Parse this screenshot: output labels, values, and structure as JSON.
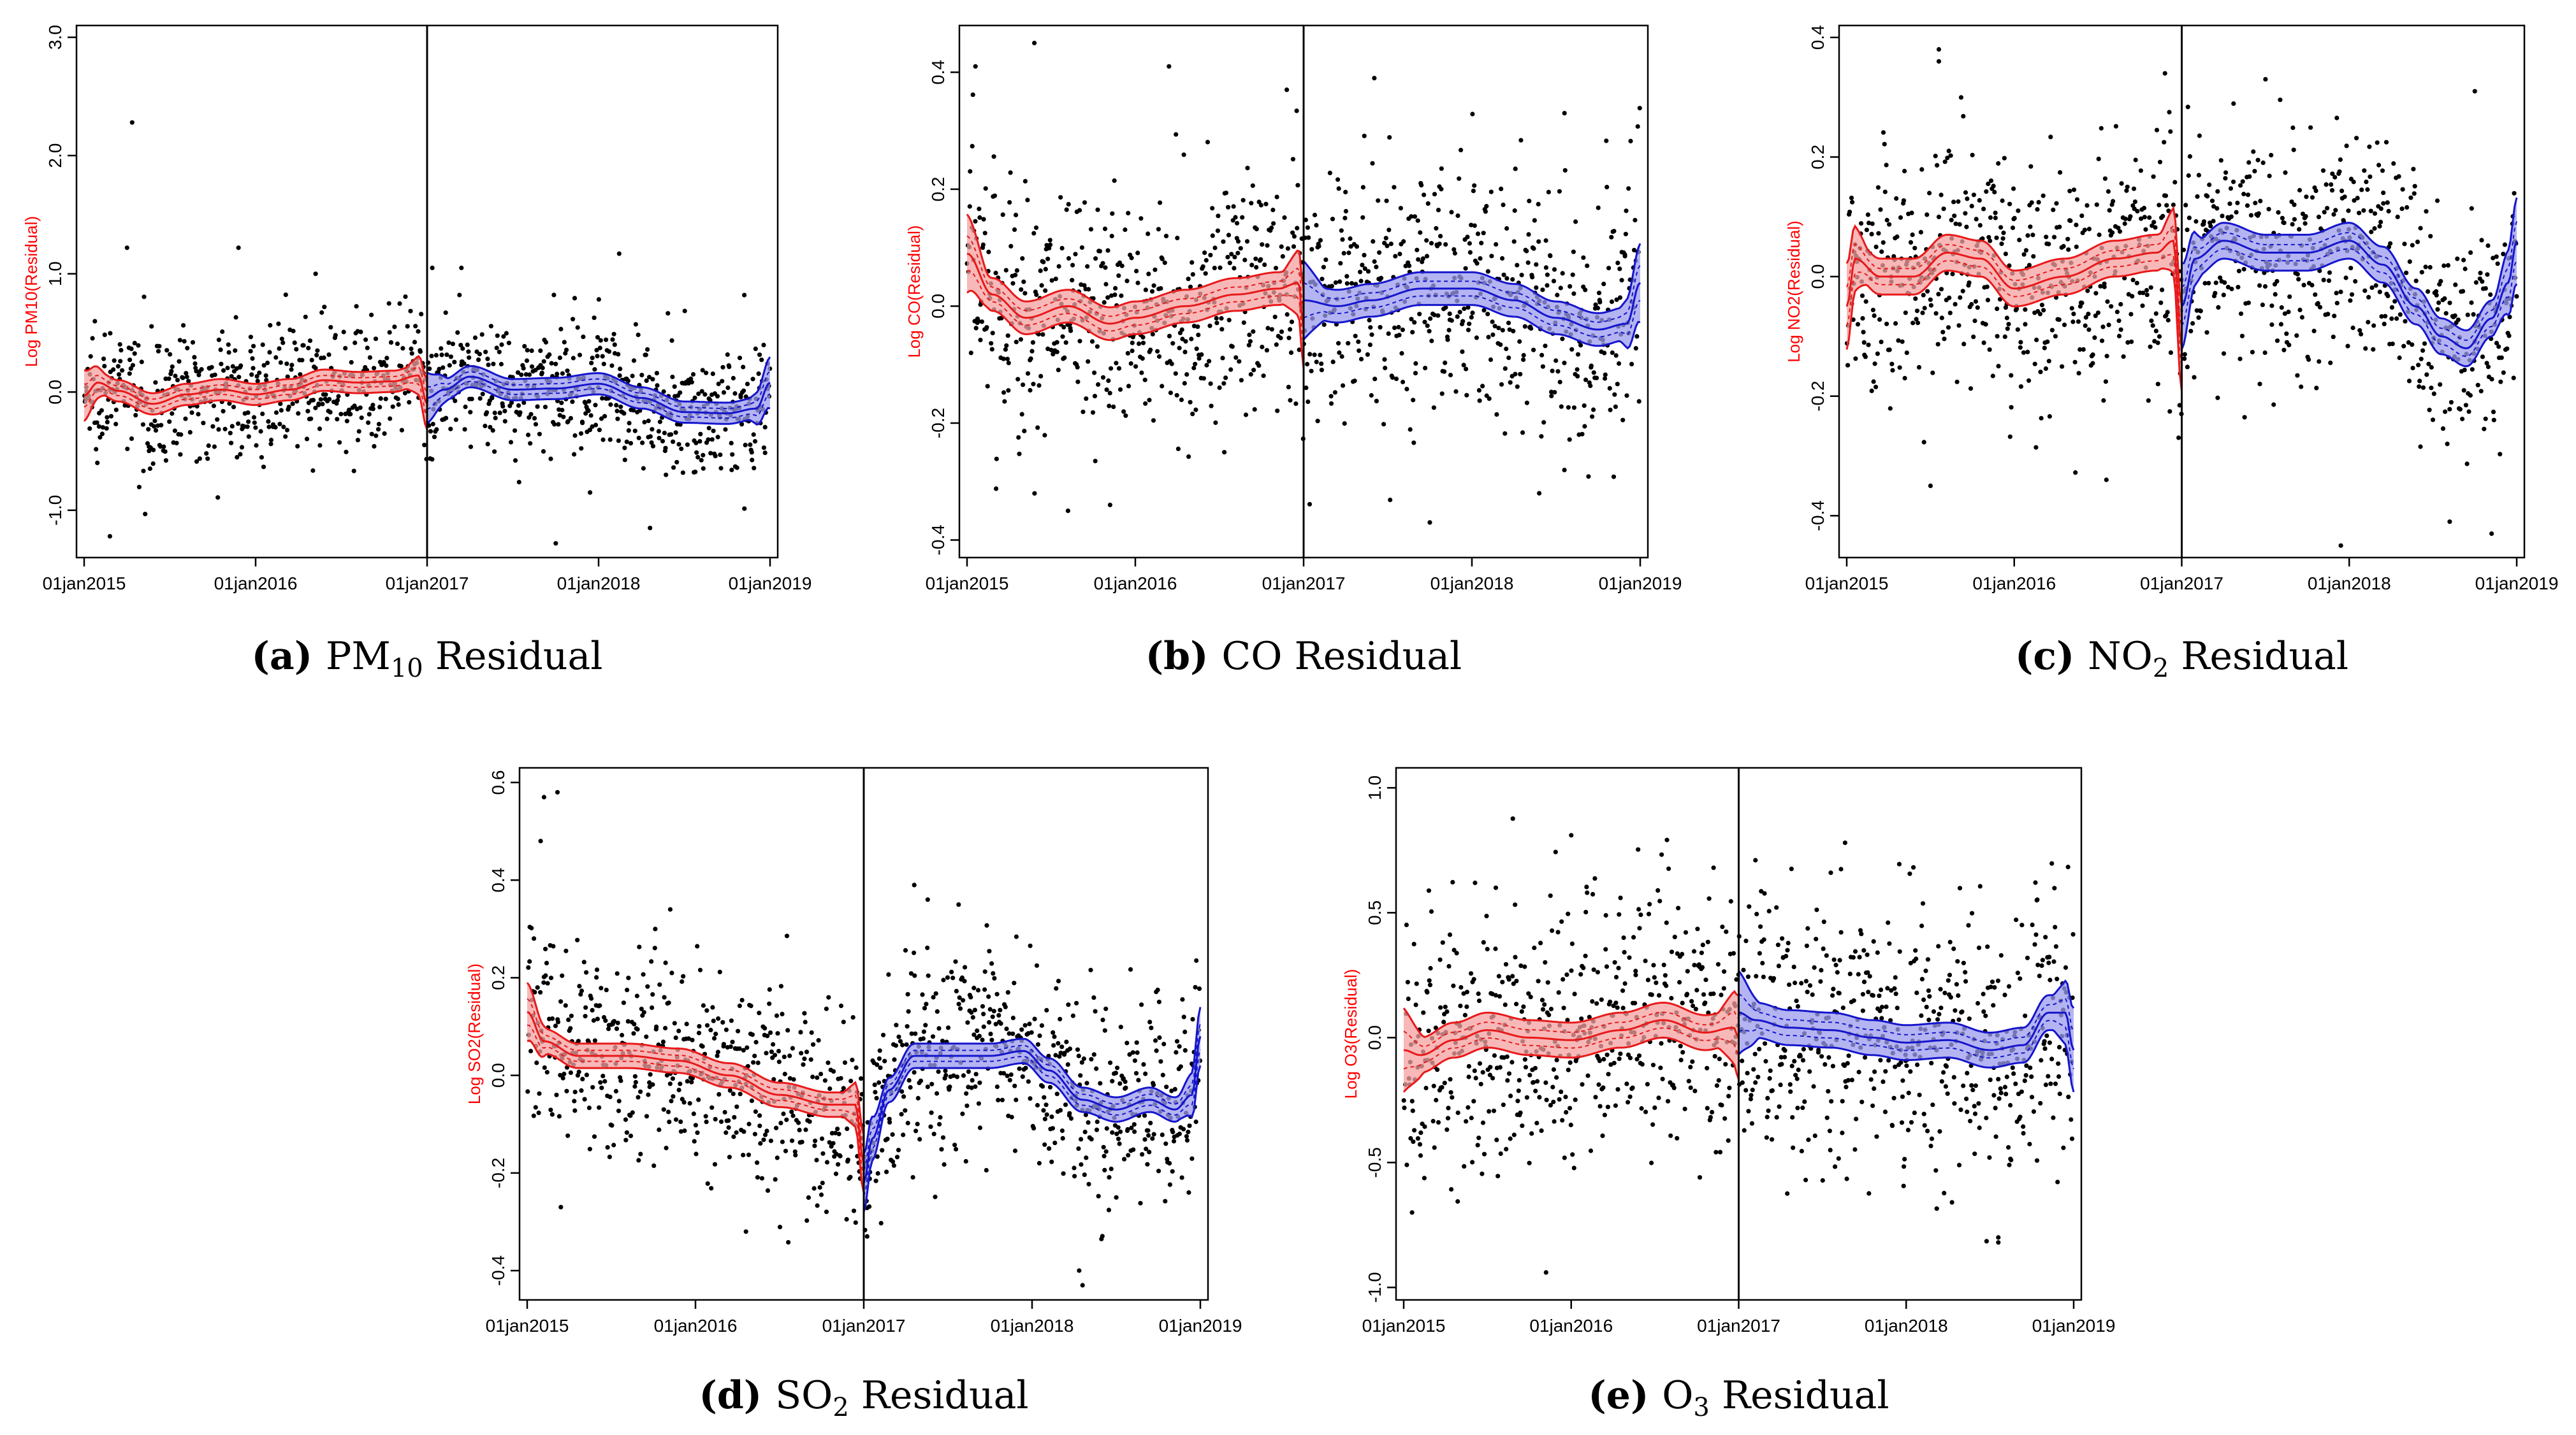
{
  "colors": {
    "pre": "#e8191a",
    "pre_fill": "#f5a0a0",
    "post": "#1515cc",
    "post_fill": "#9b9bee",
    "points": "#000000",
    "cutoff": "#000000"
  },
  "chart_data": [
    {
      "id": "a",
      "type": "scatter",
      "title": "PM10 Residual",
      "caption": {
        "letter": "(a)",
        "pre": "PM",
        "sub": "10",
        "post": " Residual"
      },
      "ylabel": "Log PM10(Residual)",
      "xlabel": "",
      "x_ticks": [
        "01jan2015",
        "01jan2016",
        "01jan2017",
        "01jan2018",
        "01jan2019"
      ],
      "x_range": [
        2015.0,
        2019.0
      ],
      "cutoff": 2017.0,
      "ylim": [
        -1.4,
        3.1
      ],
      "y_ticks": [
        -1.0,
        0.0,
        1.0,
        2.0,
        3.0
      ],
      "y_tick_labels": [
        "-1.0",
        "0.0",
        "1.0",
        "2.0",
        "3.0"
      ],
      "band_halfwidth": 0.09,
      "scatter_sd": 0.27,
      "scatter_outliers": [
        [
          2015.28,
          2.28
        ],
        [
          2015.25,
          1.22
        ],
        [
          2015.9,
          1.22
        ],
        [
          2015.15,
          -1.22
        ],
        [
          2017.03,
          1.05
        ],
        [
          2017.2,
          1.05
        ],
        [
          2018.12,
          1.17
        ],
        [
          2017.75,
          -1.28
        ],
        [
          2018.3,
          -1.15
        ],
        [
          2017.95,
          -0.85
        ],
        [
          2016.35,
          1.0
        ],
        [
          2018.85,
          0.82
        ]
      ],
      "pre_fit": {
        "x": [
          2015.0,
          2015.08,
          2015.2,
          2015.4,
          2015.6,
          2015.8,
          2016.0,
          2016.2,
          2016.4,
          2016.6,
          2016.8,
          2016.95,
          2017.0
        ],
        "y": [
          -0.03,
          0.08,
          0.01,
          -0.1,
          -0.02,
          0.02,
          -0.02,
          0.02,
          0.1,
          0.08,
          0.09,
          0.14,
          -0.1
        ]
      },
      "post_fit": {
        "x": [
          2017.0,
          2017.1,
          2017.25,
          2017.5,
          2017.75,
          2018.0,
          2018.25,
          2018.5,
          2018.75,
          2018.92,
          2019.0
        ],
        "y": [
          -0.05,
          0.02,
          0.13,
          0.02,
          0.03,
          0.07,
          -0.05,
          -0.17,
          -0.18,
          -0.14,
          0.08
        ]
      }
    },
    {
      "id": "b",
      "type": "scatter",
      "title": "CO Residual",
      "caption": {
        "letter": "(b)",
        "pre": "CO Residual",
        "sub": "",
        "post": ""
      },
      "ylabel": "Log CO(Residual)",
      "xlabel": "",
      "x_ticks": [
        "01jan2015",
        "01jan2016",
        "01jan2017",
        "01jan2018",
        "01jan2019"
      ],
      "x_range": [
        2015.0,
        2019.0
      ],
      "cutoff": 2017.0,
      "ylim": [
        -0.43,
        0.48
      ],
      "y_ticks": [
        -0.4,
        -0.2,
        0.0,
        0.2,
        0.4
      ],
      "y_tick_labels": [
        "-0.4",
        "-0.2",
        "0.0",
        "0.2",
        "0.4"
      ],
      "band_halfwidth": 0.028,
      "scatter_sd": 0.11,
      "scatter_outliers": [
        [
          2015.4,
          0.45
        ],
        [
          2015.05,
          0.41
        ],
        [
          2016.2,
          0.41
        ],
        [
          2017.42,
          0.39
        ],
        [
          2015.6,
          -0.35
        ],
        [
          2015.85,
          -0.34
        ],
        [
          2017.75,
          -0.37
        ],
        [
          2018.4,
          -0.32
        ],
        [
          2016.9,
          0.37
        ],
        [
          2018.55,
          0.33
        ]
      ],
      "pre_fit": {
        "x": [
          2015.0,
          2015.15,
          2015.35,
          2015.6,
          2015.85,
          2016.0,
          2016.3,
          2016.6,
          2016.85,
          2016.97,
          2017.0
        ],
        "y": [
          0.09,
          0.02,
          -0.02,
          0.0,
          -0.03,
          -0.02,
          0.0,
          0.02,
          0.03,
          0.04,
          -0.04
        ]
      },
      "post_fit": {
        "x": [
          2017.0,
          2017.2,
          2017.4,
          2017.7,
          2018.0,
          2018.25,
          2018.5,
          2018.75,
          2018.92,
          2019.0
        ],
        "y": [
          0.01,
          0.0,
          0.01,
          0.03,
          0.03,
          0.01,
          -0.02,
          -0.04,
          -0.03,
          0.04
        ]
      }
    },
    {
      "id": "c",
      "type": "scatter",
      "title": "NO2 Residual",
      "caption": {
        "letter": "(c)",
        "pre": "NO",
        "sub": "2",
        "post": " Residual"
      },
      "ylabel": "Log NO2(Residual)",
      "xlabel": "",
      "x_ticks": [
        "01jan2015",
        "01jan2016",
        "01jan2017",
        "01jan2018",
        "01jan2019"
      ],
      "x_range": [
        2015.0,
        2019.0
      ],
      "cutoff": 2017.0,
      "ylim": [
        -0.47,
        0.42
      ],
      "y_ticks": [
        -0.4,
        -0.2,
        0.0,
        0.2,
        0.4
      ],
      "y_tick_labels": [
        "-0.4",
        "-0.2",
        "0.0",
        "0.2",
        "0.4"
      ],
      "band_halfwidth": 0.03,
      "scatter_sd": 0.1,
      "scatter_outliers": [
        [
          2015.55,
          0.38
        ],
        [
          2015.55,
          0.36
        ],
        [
          2016.9,
          0.34
        ],
        [
          2017.5,
          0.33
        ],
        [
          2017.95,
          -0.45
        ],
        [
          2018.85,
          -0.43
        ],
        [
          2018.6,
          -0.41
        ],
        [
          2016.55,
          -0.34
        ],
        [
          2015.5,
          -0.35
        ],
        [
          2018.75,
          0.31
        ]
      ],
      "pre_fit": {
        "x": [
          2015.0,
          2015.05,
          2015.2,
          2015.4,
          2015.6,
          2015.8,
          2016.0,
          2016.3,
          2016.6,
          2016.85,
          2016.95,
          2017.0
        ],
        "y": [
          -0.05,
          0.03,
          0.0,
          0.0,
          0.04,
          0.03,
          -0.02,
          0.0,
          0.03,
          0.04,
          0.06,
          -0.12
        ]
      },
      "post_fit": {
        "x": [
          2017.0,
          2017.08,
          2017.25,
          2017.5,
          2017.75,
          2018.0,
          2018.2,
          2018.4,
          2018.55,
          2018.7,
          2018.85,
          2018.95,
          2019.0
        ],
        "y": [
          -0.05,
          0.03,
          0.06,
          0.04,
          0.04,
          0.06,
          0.02,
          -0.05,
          -0.1,
          -0.12,
          -0.07,
          -0.01,
          0.06
        ]
      }
    },
    {
      "id": "d",
      "type": "scatter",
      "title": "SO2 Residual",
      "caption": {
        "letter": "(d)",
        "pre": "SO",
        "sub": "2",
        "post": " Residual"
      },
      "ylabel": "Log SO2(Residual)",
      "xlabel": "",
      "x_ticks": [
        "01jan2015",
        "01jan2016",
        "01jan2017",
        "01jan2018",
        "01jan2019"
      ],
      "x_range": [
        2015.0,
        2019.0
      ],
      "cutoff": 2017.0,
      "ylim": [
        -0.46,
        0.63
      ],
      "y_ticks": [
        -0.4,
        -0.2,
        0.0,
        0.2,
        0.4,
        0.6
      ],
      "y_tick_labels": [
        "-0.4",
        "-0.2",
        "0.0",
        "0.2",
        "0.4",
        "0.6"
      ],
      "band_halfwidth": 0.025,
      "scatter_sd": 0.1,
      "scatter_outliers": [
        [
          2015.1,
          0.57
        ],
        [
          2015.18,
          0.58
        ],
        [
          2015.08,
          0.48
        ],
        [
          2016.3,
          -0.32
        ],
        [
          2017.02,
          -0.33
        ],
        [
          2018.3,
          -0.43
        ],
        [
          2018.28,
          -0.4
        ],
        [
          2017.3,
          0.39
        ],
        [
          2017.38,
          0.36
        ],
        [
          2015.2,
          -0.27
        ],
        [
          2015.85,
          0.34
        ]
      ],
      "pre_fit": {
        "x": [
          2015.0,
          2015.1,
          2015.3,
          2015.6,
          2015.9,
          2016.2,
          2016.5,
          2016.8,
          2016.95,
          2017.0
        ],
        "y": [
          0.13,
          0.07,
          0.04,
          0.04,
          0.03,
          0.0,
          -0.04,
          -0.06,
          -0.06,
          -0.18
        ]
      },
      "post_fit": {
        "x": [
          2017.0,
          2017.05,
          2017.15,
          2017.3,
          2017.5,
          2017.75,
          2017.95,
          2018.1,
          2018.3,
          2018.5,
          2018.7,
          2018.85,
          2018.95,
          2019.0
        ],
        "y": [
          -0.22,
          -0.13,
          -0.03,
          0.04,
          0.04,
          0.04,
          0.05,
          0.01,
          -0.05,
          -0.07,
          -0.05,
          -0.07,
          -0.04,
          0.08
        ]
      }
    },
    {
      "id": "e",
      "type": "scatter",
      "title": "O3 Residual",
      "caption": {
        "letter": "(e)",
        "pre": "O",
        "sub": "3",
        "post": " Residual"
      },
      "ylabel": "Log O3(Residual)",
      "xlabel": "",
      "x_ticks": [
        "01jan2015",
        "01jan2016",
        "01jan2017",
        "01jan2018",
        "01jan2019"
      ],
      "x_range": [
        2015.0,
        2019.0
      ],
      "cutoff": 2017.0,
      "ylim": [
        -1.05,
        1.08
      ],
      "y_ticks": [
        -1.0,
        -0.5,
        0.0,
        0.5,
        1.0
      ],
      "y_tick_labels": [
        "-1.0",
        "-0.5",
        "0.0",
        "0.5",
        "1.0"
      ],
      "band_halfwidth": 0.07,
      "scatter_sd": 0.27,
      "scatter_outliers": [
        [
          2016.0,
          0.81
        ],
        [
          2015.85,
          -0.94
        ],
        [
          2017.1,
          0.71
        ],
        [
          2018.55,
          -0.82
        ],
        [
          2018.55,
          -0.8
        ],
        [
          2015.05,
          -0.7
        ],
        [
          2015.55,
          0.6
        ],
        [
          2016.85,
          0.68
        ],
        [
          2017.55,
          0.66
        ],
        [
          2018.78,
          0.55
        ]
      ],
      "pre_fit": {
        "x": [
          2015.0,
          2015.1,
          2015.3,
          2015.5,
          2015.75,
          2016.0,
          2016.3,
          2016.55,
          2016.8,
          2016.97,
          2017.0
        ],
        "y": [
          -0.05,
          -0.07,
          -0.01,
          0.03,
          0.0,
          -0.01,
          0.03,
          0.07,
          0.02,
          0.04,
          0.0
        ]
      },
      "post_fit": {
        "x": [
          2017.0,
          2017.1,
          2017.3,
          2017.55,
          2017.8,
          2018.0,
          2018.25,
          2018.5,
          2018.7,
          2018.85,
          2018.95,
          2019.0
        ],
        "y": [
          0.1,
          0.07,
          0.04,
          0.03,
          0.0,
          -0.02,
          -0.01,
          -0.05,
          -0.03,
          0.1,
          0.1,
          -0.05
        ]
      }
    }
  ]
}
